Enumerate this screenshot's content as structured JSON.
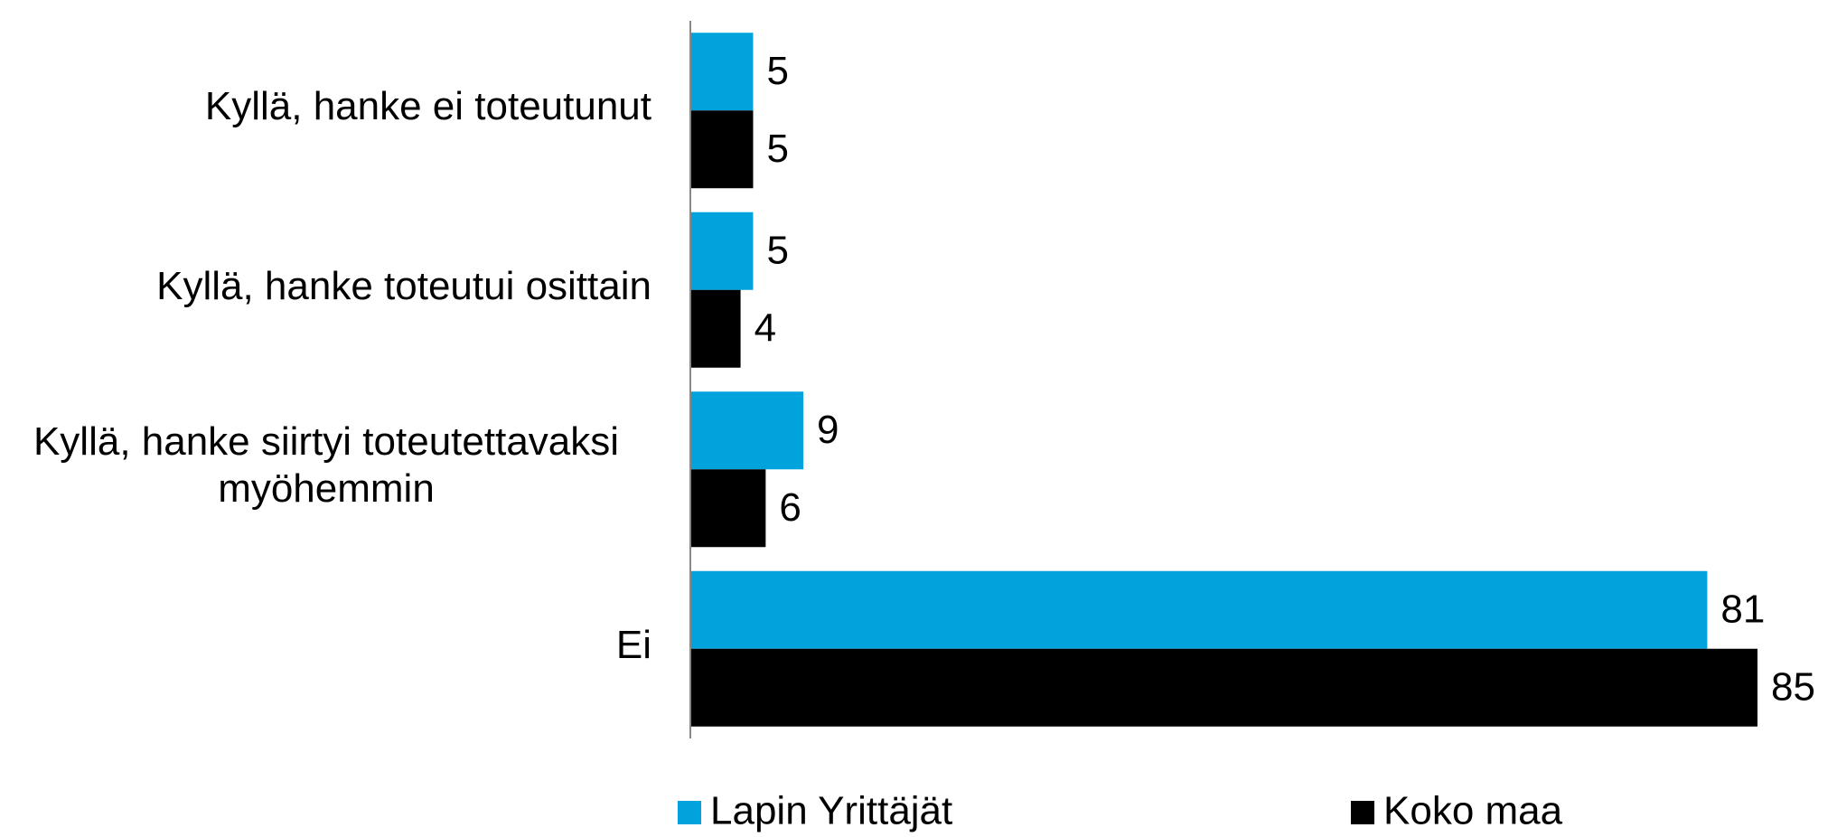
{
  "chart_data": {
    "type": "bar",
    "orientation": "horizontal",
    "categories": [
      "Kyllä, hanke ei toteutunut",
      "Kyllä, hanke toteutui osittain",
      "Kyllä, hanke siirtyi toteutettavaksi myöhemmin",
      "Ei"
    ],
    "series": [
      {
        "name": "Lapin Yrittäjät",
        "color": "#00a3dc",
        "values": [
          5,
          5,
          9,
          81
        ]
      },
      {
        "name": "Koko maa",
        "color": "#000000",
        "values": [
          5,
          4,
          6,
          85
        ]
      }
    ]
  }
}
